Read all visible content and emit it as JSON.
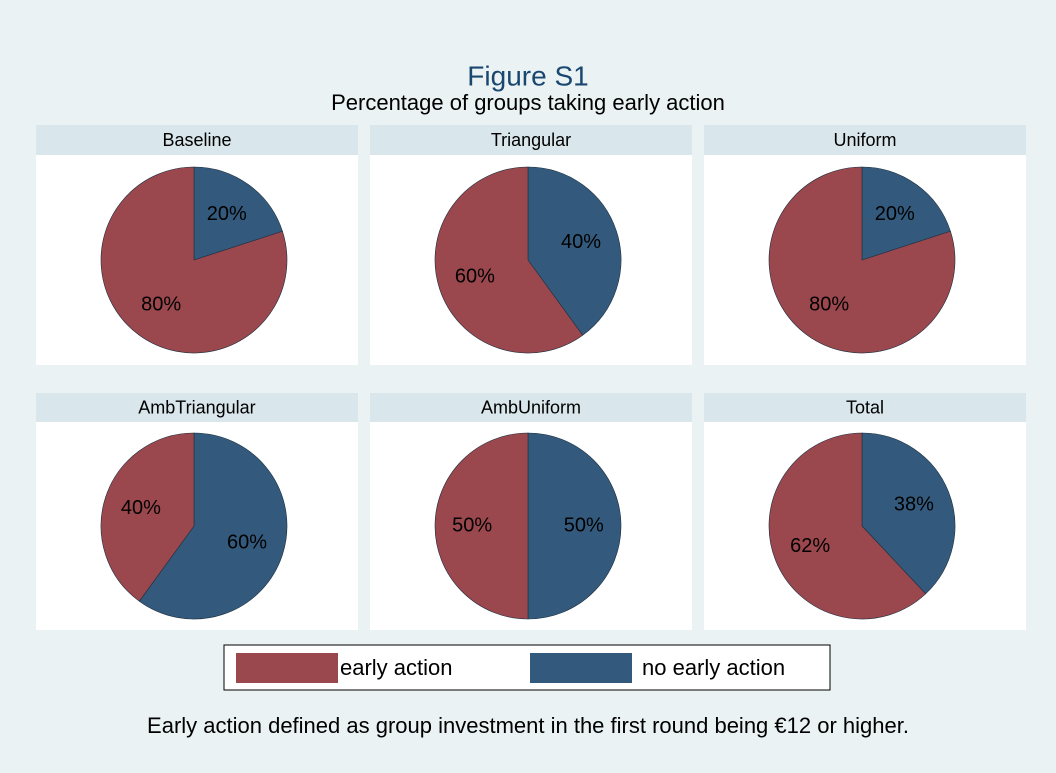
{
  "title": "Figure S1",
  "subtitle": "Percentage of groups taking early action",
  "note": "Early action defined as group investment in the first round being €12 or higher.",
  "chart_data": [
    {
      "type": "pie",
      "title": "Baseline",
      "categories": [
        "early action",
        "no early action"
      ],
      "colors": [
        "#9a474d",
        "#335a7c"
      ],
      "values": [
        80,
        20
      ],
      "value_labels": [
        "80%",
        "20%"
      ]
    },
    {
      "type": "pie",
      "title": "Triangular",
      "categories": [
        "early action",
        "no early action"
      ],
      "colors": [
        "#9a474d",
        "#335a7c"
      ],
      "values": [
        60,
        40
      ],
      "value_labels": [
        "60%",
        "40%"
      ]
    },
    {
      "type": "pie",
      "title": "Uniform",
      "categories": [
        "early action",
        "no early action"
      ],
      "colors": [
        "#9a474d",
        "#335a7c"
      ],
      "values": [
        80,
        20
      ],
      "value_labels": [
        "80%",
        "20%"
      ]
    },
    {
      "type": "pie",
      "title": "AmbTriangular",
      "categories": [
        "early action",
        "no early action"
      ],
      "colors": [
        "#9a474d",
        "#335a7c"
      ],
      "values": [
        40,
        60
      ],
      "value_labels": [
        "40%",
        "60%"
      ]
    },
    {
      "type": "pie",
      "title": "AmbUniform",
      "categories": [
        "early action",
        "no early action"
      ],
      "colors": [
        "#9a474d",
        "#335a7c"
      ],
      "values": [
        50,
        50
      ],
      "value_labels": [
        "50%",
        "50%"
      ]
    },
    {
      "type": "pie",
      "title": "Total",
      "categories": [
        "early action",
        "no early action"
      ],
      "colors": [
        "#9a474d",
        "#335a7c"
      ],
      "values": [
        62,
        38
      ],
      "value_labels": [
        "62%",
        "38%"
      ]
    }
  ]
}
